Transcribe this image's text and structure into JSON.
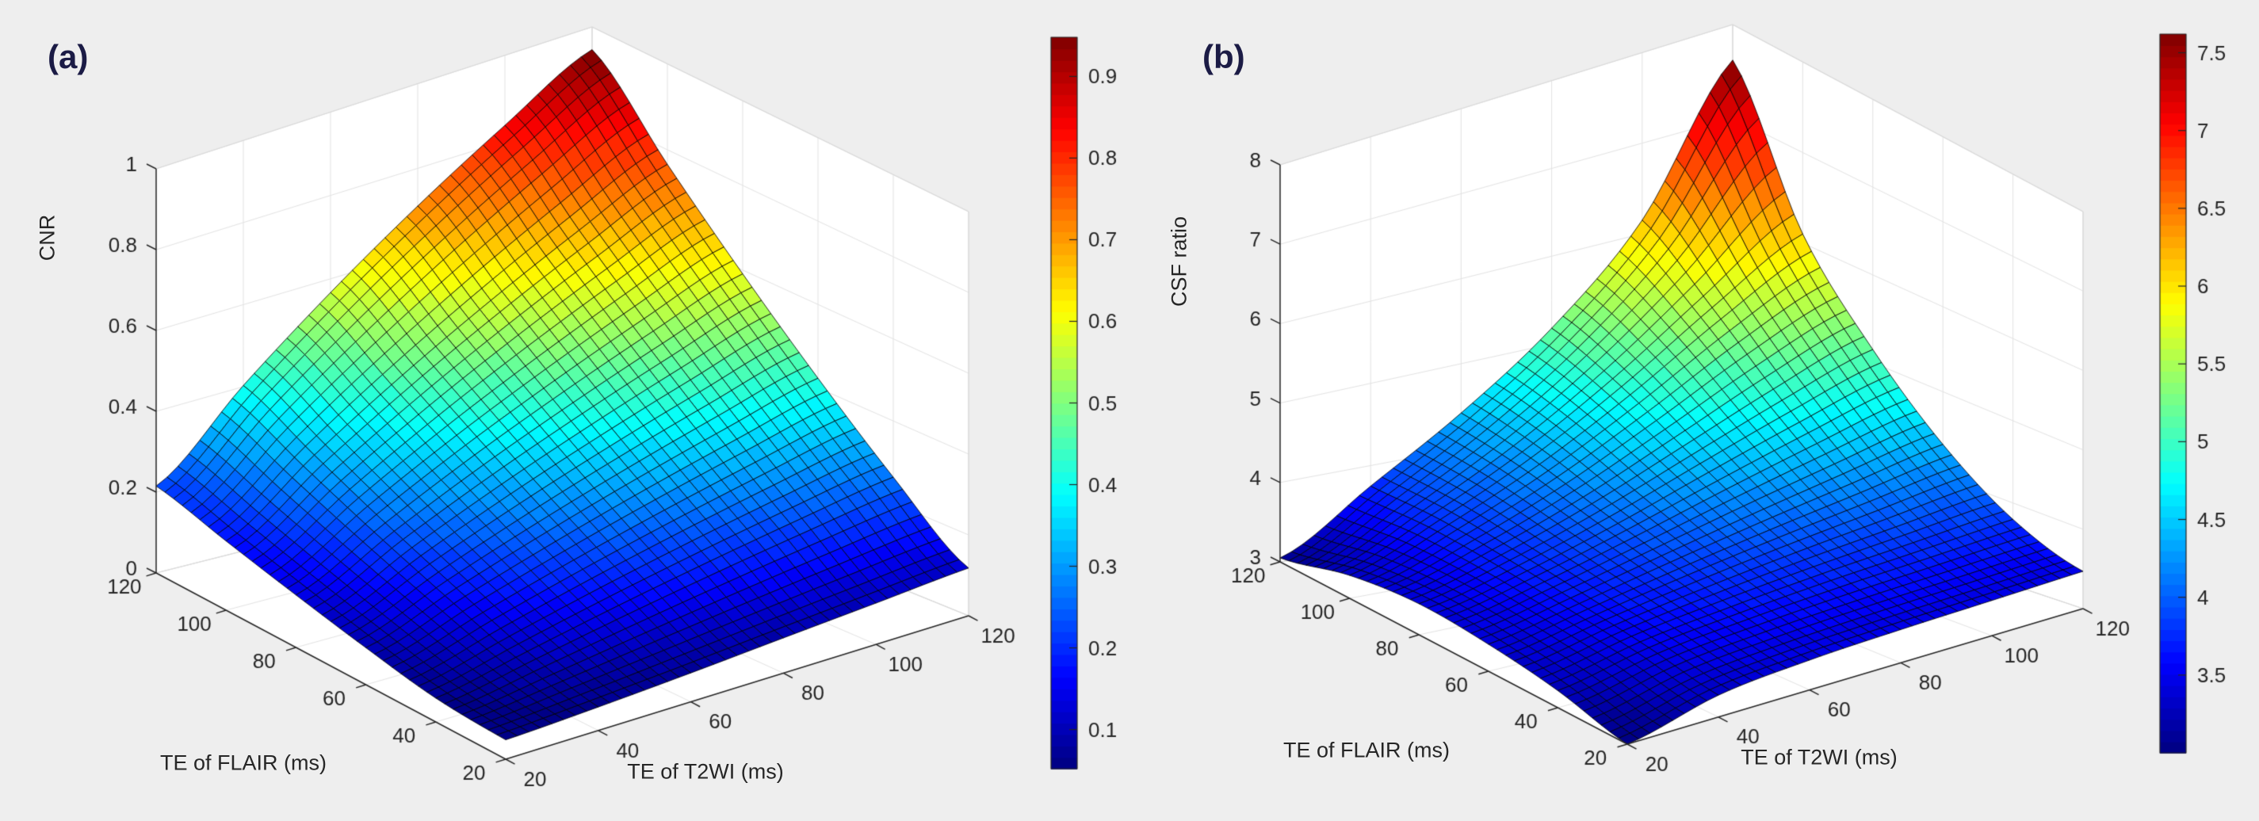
{
  "page": {
    "background": "#eeeeee",
    "axes_background": "#ffffff"
  },
  "panels": [
    {
      "letter": "(a)",
      "chart_data": {
        "type": "surface",
        "xlabel": "TE of T2WI (ms)",
        "ylabel": "TE of FLAIR (ms)",
        "zlabel": "CNR",
        "x": [
          20,
          40,
          60,
          80,
          100,
          120
        ],
        "y": [
          20,
          40,
          60,
          80,
          100,
          120
        ],
        "z": [
          [
            0.052,
            0.062,
            0.075,
            0.09,
            0.104,
            0.118
          ],
          [
            0.063,
            0.112,
            0.158,
            0.198,
            0.233,
            0.263
          ],
          [
            0.096,
            0.18,
            0.253,
            0.317,
            0.373,
            0.423
          ],
          [
            0.134,
            0.251,
            0.354,
            0.443,
            0.522,
            0.591
          ],
          [
            0.174,
            0.326,
            0.459,
            0.575,
            0.677,
            0.766
          ],
          [
            0.215,
            0.403,
            0.567,
            0.711,
            0.837,
            0.948
          ]
        ],
        "x_ticks": [
          20,
          40,
          60,
          80,
          100,
          120
        ],
        "y_ticks": [
          20,
          40,
          60,
          80,
          100,
          120
        ],
        "z_ticks": [
          0,
          0.2,
          0.4,
          0.6,
          0.8,
          1
        ],
        "z_tick_labels": [
          "0",
          "0.2",
          "0.4",
          "0.6",
          "0.8",
          "1"
        ],
        "z_range": [
          0,
          1
        ],
        "colormap": "jet",
        "color_range": [
          0.052,
          0.948
        ],
        "colorbar_ticks": [
          0.1,
          0.2,
          0.3,
          0.4,
          0.5,
          0.6,
          0.7,
          0.8,
          0.9
        ],
        "colorbar_tick_labels": [
          "0.1",
          "0.2",
          "0.3",
          "0.4",
          "0.5",
          "0.6",
          "0.7",
          "0.8",
          "0.9"
        ],
        "mesh_divisions": 40,
        "grid": true
      }
    },
    {
      "letter": "(b)",
      "chart_data": {
        "type": "surface",
        "xlabel": "TE of T2WI (ms)",
        "ylabel": "TE of FLAIR (ms)",
        "zlabel": "CSF ratio",
        "x": [
          20,
          40,
          60,
          80,
          100,
          120
        ],
        "y": [
          20,
          40,
          60,
          80,
          100,
          120
        ],
        "z": [
          [
            3.0,
            3.32,
            3.42,
            3.45,
            3.46,
            3.47
          ],
          [
            3.25,
            3.5,
            3.62,
            3.7,
            3.75,
            3.8
          ],
          [
            3.38,
            3.62,
            3.85,
            4.05,
            4.22,
            4.38
          ],
          [
            3.42,
            3.72,
            4.08,
            4.48,
            4.85,
            5.15
          ],
          [
            3.3,
            3.78,
            4.3,
            4.9,
            5.55,
            6.1
          ],
          [
            3.05,
            3.75,
            4.42,
            5.18,
            6.15,
            7.62
          ]
        ],
        "x_ticks": [
          20,
          40,
          60,
          80,
          100,
          120
        ],
        "y_ticks": [
          20,
          40,
          60,
          80,
          100,
          120
        ],
        "z_ticks": [
          3,
          4,
          5,
          6,
          7,
          8
        ],
        "z_tick_labels": [
          "3",
          "4",
          "5",
          "6",
          "7",
          "8"
        ],
        "z_range": [
          3,
          8
        ],
        "colormap": "jet",
        "color_range": [
          3.0,
          7.62
        ],
        "colorbar_ticks": [
          3.5,
          4,
          4.5,
          5,
          5.5,
          6,
          6.5,
          7,
          7.5
        ],
        "colorbar_tick_labels": [
          "3.5",
          "4",
          "4.5",
          "5",
          "5.5",
          "6",
          "6.5",
          "7",
          "7.5"
        ],
        "mesh_divisions": 40,
        "grid": true
      }
    }
  ]
}
